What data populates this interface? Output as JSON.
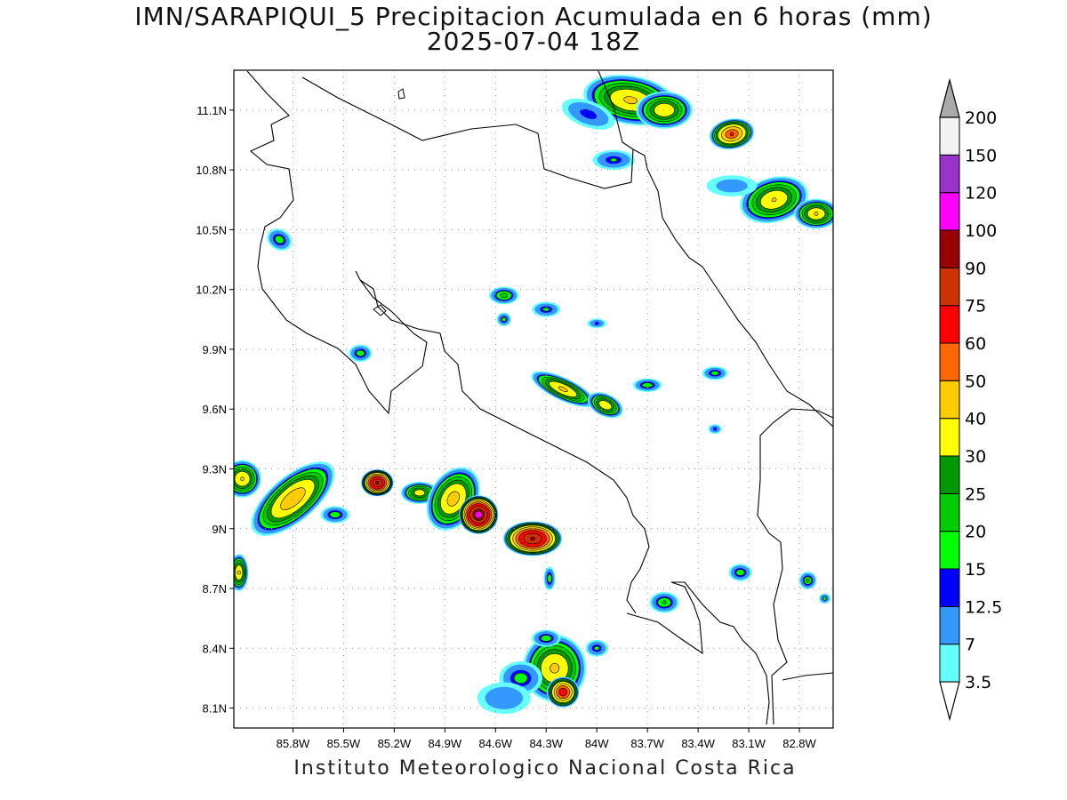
{
  "title": {
    "line1": "IMN/SARAPIQUI_5 Precipitacion Acumulada en 6 horas (mm)",
    "line2": "2025-07-04 18Z"
  },
  "credit": "Instituto Meteorologico Nacional Costa Rica",
  "map": {
    "lon_range": [
      -86.15,
      -82.6
    ],
    "lat_range": [
      8.0,
      11.3
    ],
    "lon_ticks": [
      {
        "lon": -85.8,
        "label": "85.8W"
      },
      {
        "lon": -85.5,
        "label": "85.5W"
      },
      {
        "lon": -85.2,
        "label": "85.2W"
      },
      {
        "lon": -84.9,
        "label": "84.9W"
      },
      {
        "lon": -84.6,
        "label": "84.6W"
      },
      {
        "lon": -84.3,
        "label": "84.3W"
      },
      {
        "lon": -84.0,
        "label": "84W"
      },
      {
        "lon": -83.7,
        "label": "83.7W"
      },
      {
        "lon": -83.4,
        "label": "83.4W"
      },
      {
        "lon": -83.1,
        "label": "83.1W"
      },
      {
        "lon": -82.8,
        "label": "82.8W"
      }
    ],
    "lat_ticks": [
      {
        "lat": 11.1,
        "label": "11.1N"
      },
      {
        "lat": 10.8,
        "label": "10.8N"
      },
      {
        "lat": 10.5,
        "label": "10.5N"
      },
      {
        "lat": 10.2,
        "label": "10.2N"
      },
      {
        "lat": 9.9,
        "label": "9.9N"
      },
      {
        "lat": 9.6,
        "label": "9.6N"
      },
      {
        "lat": 9.3,
        "label": "9.3N"
      },
      {
        "lat": 9.0,
        "label": "9N"
      },
      {
        "lat": 8.7,
        "label": "8.7N"
      },
      {
        "lat": 8.4,
        "label": "8.4N"
      },
      {
        "lat": 8.1,
        "label": "8.1N"
      }
    ],
    "grid": true
  },
  "legend": {
    "levels": [
      {
        "label": "3.5",
        "color": "#66ffff"
      },
      {
        "label": "7",
        "color": "#3399ff"
      },
      {
        "label": "12.5",
        "color": "#0000ff"
      },
      {
        "label": "15",
        "color": "#00ff00"
      },
      {
        "label": "20",
        "color": "#00cc00"
      },
      {
        "label": "25",
        "color": "#009900"
      },
      {
        "label": "30",
        "color": "#ffff00"
      },
      {
        "label": "40",
        "color": "#ffcc00"
      },
      {
        "label": "50",
        "color": "#ff6600"
      },
      {
        "label": "60",
        "color": "#ff0000"
      },
      {
        "label": "75",
        "color": "#cc3300"
      },
      {
        "label": "90",
        "color": "#990000"
      },
      {
        "label": "100",
        "color": "#ff00ff"
      },
      {
        "label": "120",
        "color": "#9933cc"
      },
      {
        "label": "150",
        "color": "#f2f2f2"
      },
      {
        "label": "200",
        "color": "#aaaaaa"
      }
    ]
  },
  "rain_cells": [
    {
      "lon": -83.8,
      "lat": 11.15,
      "max": 42,
      "a": 0.3,
      "b": 0.13,
      "rot": 10
    },
    {
      "lon": -83.6,
      "lat": 11.1,
      "max": 38,
      "a": 0.18,
      "b": 0.1,
      "rot": 0
    },
    {
      "lon": -83.2,
      "lat": 10.98,
      "max": 60,
      "a": 0.14,
      "b": 0.08,
      "rot": -10
    },
    {
      "lon": -84.05,
      "lat": 11.08,
      "max": 14,
      "a": 0.2,
      "b": 0.08,
      "rot": 20
    },
    {
      "lon": -83.9,
      "lat": 10.85,
      "max": 15,
      "a": 0.15,
      "b": 0.06,
      "rot": 0
    },
    {
      "lon": -82.95,
      "lat": 10.65,
      "max": 40,
      "a": 0.22,
      "b": 0.12,
      "rot": -15
    },
    {
      "lon": -82.7,
      "lat": 10.58,
      "max": 40,
      "a": 0.14,
      "b": 0.08,
      "rot": 0
    },
    {
      "lon": -83.2,
      "lat": 10.72,
      "max": 10,
      "a": 0.2,
      "b": 0.07,
      "rot": 0
    },
    {
      "lon": -85.88,
      "lat": 10.45,
      "max": 18,
      "a": 0.09,
      "b": 0.06,
      "rot": 30
    },
    {
      "lon": -84.55,
      "lat": 10.17,
      "max": 22,
      "a": 0.1,
      "b": 0.05,
      "rot": 0
    },
    {
      "lon": -84.3,
      "lat": 10.1,
      "max": 16,
      "a": 0.1,
      "b": 0.045,
      "rot": 0
    },
    {
      "lon": -84.55,
      "lat": 10.05,
      "max": 17,
      "a": 0.05,
      "b": 0.04,
      "rot": 0
    },
    {
      "lon": -85.4,
      "lat": 9.88,
      "max": 18,
      "a": 0.08,
      "b": 0.05,
      "rot": 0
    },
    {
      "lon": -84.0,
      "lat": 10.03,
      "max": 13,
      "a": 0.07,
      "b": 0.03,
      "rot": 0
    },
    {
      "lon": -84.2,
      "lat": 9.7,
      "max": 42,
      "a": 0.22,
      "b": 0.06,
      "rot": 25
    },
    {
      "lon": -83.95,
      "lat": 9.62,
      "max": 38,
      "a": 0.12,
      "b": 0.06,
      "rot": 25
    },
    {
      "lon": -83.7,
      "lat": 9.72,
      "max": 18,
      "a": 0.1,
      "b": 0.04,
      "rot": 0
    },
    {
      "lon": -83.3,
      "lat": 9.78,
      "max": 17,
      "a": 0.09,
      "b": 0.04,
      "rot": 0
    },
    {
      "lon": -83.3,
      "lat": 9.5,
      "max": 13,
      "a": 0.05,
      "b": 0.03,
      "rot": 0
    },
    {
      "lon": -85.8,
      "lat": 9.15,
      "max": 48,
      "a": 0.32,
      "b": 0.12,
      "rot": -40
    },
    {
      "lon": -86.1,
      "lat": 9.25,
      "max": 40,
      "a": 0.12,
      "b": 0.1,
      "rot": 0
    },
    {
      "lon": -85.3,
      "lat": 9.23,
      "max": 90,
      "a": 0.1,
      "b": 0.07,
      "rot": 0
    },
    {
      "lon": -85.05,
      "lat": 9.18,
      "max": 35,
      "a": 0.12,
      "b": 0.06,
      "rot": 0
    },
    {
      "lon": -84.85,
      "lat": 9.15,
      "max": 45,
      "a": 0.15,
      "b": 0.18,
      "rot": 30
    },
    {
      "lon": -84.7,
      "lat": 9.07,
      "max": 110,
      "a": 0.12,
      "b": 0.1,
      "rot": 0
    },
    {
      "lon": -84.38,
      "lat": 8.95,
      "max": 92,
      "a": 0.18,
      "b": 0.09,
      "rot": 0
    },
    {
      "lon": -85.55,
      "lat": 9.07,
      "max": 18,
      "a": 0.1,
      "b": 0.05,
      "rot": 0
    },
    {
      "lon": -86.12,
      "lat": 8.78,
      "max": 40,
      "a": 0.06,
      "b": 0.1,
      "rot": 0
    },
    {
      "lon": -84.25,
      "lat": 8.3,
      "max": 42,
      "a": 0.2,
      "b": 0.18,
      "rot": 0
    },
    {
      "lon": -84.2,
      "lat": 8.18,
      "max": 70,
      "a": 0.1,
      "b": 0.08,
      "rot": 0
    },
    {
      "lon": -84.45,
      "lat": 8.25,
      "max": 17,
      "a": 0.15,
      "b": 0.1,
      "rot": 0
    },
    {
      "lon": -84.55,
      "lat": 8.15,
      "max": 12,
      "a": 0.2,
      "b": 0.1,
      "rot": 0
    },
    {
      "lon": -84.0,
      "lat": 8.4,
      "max": 16,
      "a": 0.08,
      "b": 0.05,
      "rot": 0
    },
    {
      "lon": -84.3,
      "lat": 8.45,
      "max": 18,
      "a": 0.1,
      "b": 0.05,
      "rot": 0
    },
    {
      "lon": -84.28,
      "lat": 8.75,
      "max": 18,
      "a": 0.04,
      "b": 0.07,
      "rot": 0
    },
    {
      "lon": -83.6,
      "lat": 8.63,
      "max": 20,
      "a": 0.1,
      "b": 0.06,
      "rot": 0
    },
    {
      "lon": -83.15,
      "lat": 8.78,
      "max": 18,
      "a": 0.08,
      "b": 0.05,
      "rot": 0
    },
    {
      "lon": -82.75,
      "lat": 8.74,
      "max": 20,
      "a": 0.06,
      "b": 0.05,
      "rot": 0
    },
    {
      "lon": -82.65,
      "lat": 8.65,
      "max": 16,
      "a": 0.04,
      "b": 0.03,
      "rot": 0
    }
  ]
}
